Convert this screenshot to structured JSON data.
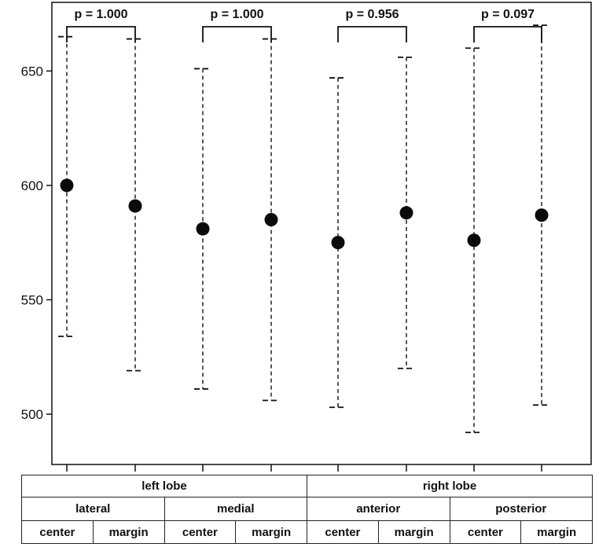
{
  "chart_data": {
    "type": "errorbar",
    "title": "",
    "xlabel": "",
    "ylabel": "",
    "ylim": [
      478,
      680
    ],
    "yticks": [
      500,
      550,
      600,
      650
    ],
    "grid": false,
    "categories": [
      "left lobe / lateral / center",
      "left lobe / lateral / margin",
      "left lobe / medial / center",
      "left lobe / medial / margin",
      "right lobe / anterior / center",
      "right lobe / anterior / margin",
      "right lobe / posterior / center",
      "right lobe / posterior / margin"
    ],
    "points": [
      {
        "mean": 600,
        "lower": 534,
        "upper": 665
      },
      {
        "mean": 591,
        "lower": 519,
        "upper": 664
      },
      {
        "mean": 581,
        "lower": 511,
        "upper": 651
      },
      {
        "mean": 585,
        "lower": 506,
        "upper": 664
      },
      {
        "mean": 575,
        "lower": 503,
        "upper": 647
      },
      {
        "mean": 588,
        "lower": 520,
        "upper": 656
      },
      {
        "mean": 576,
        "lower": 492,
        "upper": 660
      },
      {
        "mean": 587,
        "lower": 504,
        "upper": 670
      }
    ],
    "comparisons": [
      {
        "pair": [
          0,
          1
        ],
        "label": "p = 1.000"
      },
      {
        "pair": [
          2,
          3
        ],
        "label": "p = 1.000"
      },
      {
        "pair": [
          4,
          5
        ],
        "label": "p = 0.956"
      },
      {
        "pair": [
          6,
          7
        ],
        "label": "p = 0.097"
      }
    ]
  },
  "table": {
    "lobes": [
      "left lobe",
      "right lobe"
    ],
    "regions": [
      "lateral",
      "medial",
      "anterior",
      "posterior"
    ],
    "positions": [
      "center",
      "margin",
      "center",
      "margin",
      "center",
      "margin",
      "center",
      "margin"
    ]
  }
}
